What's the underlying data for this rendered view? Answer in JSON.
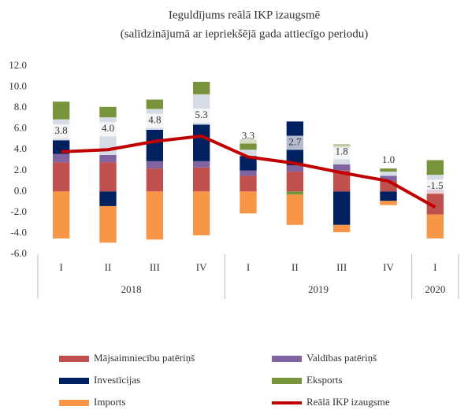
{
  "chart_data": {
    "type": "stacked_bar_line",
    "title": "Ieguldījums reālā IKP izaugsmē",
    "subtitle": "(salīdzinājumā ar iepriekšējā gada attiecīgo periodu)",
    "categories": [
      "I",
      "II",
      "III",
      "IV",
      "I",
      "II",
      "III",
      "IV",
      "I"
    ],
    "x_groups": [
      {
        "label": "2018",
        "count": 4
      },
      {
        "label": "2019",
        "count": 4
      },
      {
        "label": "2020",
        "count": 1
      }
    ],
    "ylim": [
      -6,
      12
    ],
    "yticks": [
      {
        "value": -6,
        "label": "-6.0"
      },
      {
        "value": -4,
        "label": "-4.0"
      },
      {
        "value": -2,
        "label": "-2.0"
      },
      {
        "value": 0,
        "label": "0.0"
      },
      {
        "value": 2,
        "label": "2.0"
      },
      {
        "value": 4,
        "label": "4.0"
      },
      {
        "value": 6,
        "label": "6.0"
      },
      {
        "value": 8,
        "label": "8.0"
      },
      {
        "value": 10,
        "label": "10.0"
      },
      {
        "value": 12,
        "label": "12.0"
      }
    ],
    "series": [
      {
        "name": "Mājsaimniecību patēriņš",
        "color": "#c0504d",
        "values": [
          2.8,
          2.8,
          2.2,
          2.3,
          1.5,
          1.9,
          2.0,
          1.0,
          -2.2
        ]
      },
      {
        "name": "Valdības patēriņš",
        "color": "#8064a2",
        "values": [
          0.8,
          0.7,
          0.7,
          0.6,
          0.5,
          0.6,
          0.6,
          0.5,
          0.2
        ]
      },
      {
        "name": "Investīcijas",
        "color": "#002060",
        "values": [
          1.3,
          -1.4,
          3.0,
          3.5,
          1.4,
          4.2,
          -3.2,
          -0.9,
          0
        ]
      },
      {
        "color": "#d6dce5",
        "values": [
          2.0,
          3.6,
          2.0,
          2.9,
          0.6,
          0,
          1.6,
          0.4,
          1.4
        ]
      },
      {
        "name": "Eksports",
        "color": "#77933c",
        "values": [
          1.7,
          1.0,
          0.9,
          1.2,
          1.0,
          -0.3,
          0.3,
          0.3,
          1.4
        ]
      },
      {
        "name": "Imports",
        "color": "#f79646",
        "values": [
          -4.5,
          -3.5,
          -4.6,
          -4.2,
          -2.1,
          -2.9,
          -0.7,
          -0.4,
          -2.3
        ]
      },
      {
        "name": "Reālā IKP izaugsme",
        "color": "#c00000",
        "kind": "line",
        "values": [
          3.8,
          4.0,
          4.8,
          5.3,
          3.3,
          2.7,
          1.8,
          1.0,
          -1.5
        ],
        "value_labels": [
          "3.8",
          "4.0",
          "4.8",
          "5.3",
          "3.3",
          "2.7",
          "1.8",
          "1.0",
          "-1.5"
        ]
      }
    ]
  }
}
